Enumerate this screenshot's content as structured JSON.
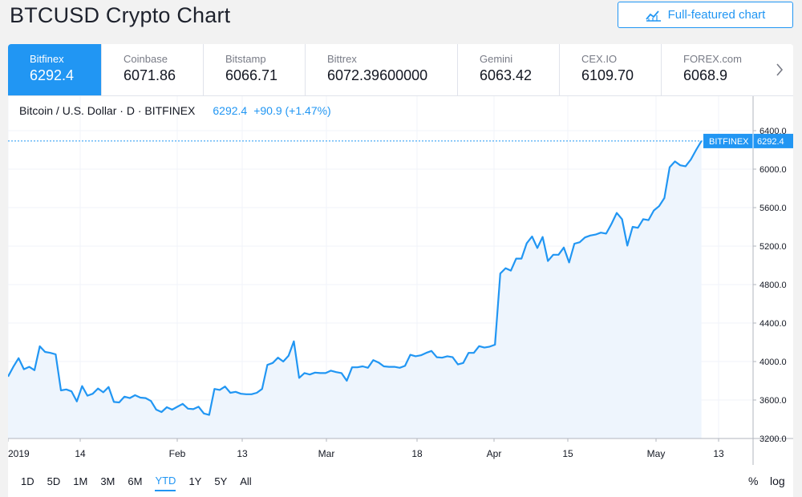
{
  "page": {
    "title": "BTCUSD Crypto Chart",
    "full_button_label": "Full-featured chart"
  },
  "exchanges": [
    {
      "name": "Bitfinex",
      "price": "6292.4",
      "active": true
    },
    {
      "name": "Coinbase",
      "price": "6071.86",
      "active": false
    },
    {
      "name": "Bitstamp",
      "price": "6066.71",
      "active": false
    },
    {
      "name": "Bittrex",
      "price": "6072.39600000",
      "active": false
    },
    {
      "name": "Gemini",
      "price": "6063.42",
      "active": false
    },
    {
      "name": "CEX.IO",
      "price": "6109.70",
      "active": false
    },
    {
      "name": "FOREX.com",
      "price": "6068.9",
      "active": false
    }
  ],
  "legend": {
    "symbol": "Bitcoin / U.S. Dollar · D · BITFINEX",
    "last": "6292.4",
    "change": "+90.9 (+1.47%)"
  },
  "price_tag": {
    "exchange": "BITFINEX",
    "value": "6292.4"
  },
  "ranges": [
    "1D",
    "5D",
    "1M",
    "3M",
    "6M",
    "YTD",
    "1Y",
    "5Y",
    "All"
  ],
  "active_range": "YTD",
  "controls": {
    "percent": "%",
    "log": "log"
  },
  "colors": {
    "accent": "#2196f3",
    "fill": "#eef5fd",
    "grid": "#f0f3fa"
  },
  "chart_data": {
    "type": "line",
    "series": [
      {
        "values": [
          3843,
          3945,
          4035,
          3920,
          3945,
          3910,
          4158,
          4100,
          4090,
          4075,
          3700,
          3710,
          3690,
          3585,
          3745,
          3645,
          3665,
          3720,
          3680,
          3735,
          3580,
          3575,
          3635,
          3620,
          3650,
          3625,
          3620,
          3590,
          3500,
          3475,
          3525,
          3500,
          3530,
          3560,
          3510,
          3505,
          3530,
          3460,
          3445,
          3715,
          3705,
          3740,
          3675,
          3685,
          3665,
          3660,
          3660,
          3675,
          3715,
          3965,
          3985,
          4040,
          4000,
          4060,
          4210,
          3830,
          3880,
          3865,
          3885,
          3880,
          3880,
          3905,
          3890,
          3880,
          3800,
          3940,
          3940,
          3950,
          3935,
          4015,
          3990,
          3950,
          3945,
          3945,
          3935,
          3955,
          4070,
          4055,
          4065,
          4090,
          4110,
          4045,
          4040,
          4055,
          4045,
          3970,
          3985,
          4090,
          4090,
          4160,
          4145,
          4155,
          4175,
          4915,
          4970,
          4945,
          5070,
          5070,
          5230,
          5300,
          5180,
          5295,
          5045,
          5110,
          5110,
          5185,
          5030,
          5225,
          5240,
          5290,
          5310,
          5320,
          5340,
          5330,
          5430,
          5545,
          5480,
          5205,
          5400,
          5390,
          5480,
          5470,
          5570,
          5615,
          5700,
          6020,
          6080,
          6040,
          6030,
          6100,
          6200,
          6292.4
        ]
      }
    ],
    "x_ticks": [
      "2019",
      "14",
      "Feb",
      "13",
      "Mar",
      "18",
      "Apr",
      "15",
      "May",
      "13"
    ],
    "y_ticks": [
      3200,
      3600,
      4000,
      4400,
      4800,
      5200,
      5600,
      6000,
      6400
    ],
    "ylim": [
      3200,
      6400
    ],
    "grid": true
  }
}
